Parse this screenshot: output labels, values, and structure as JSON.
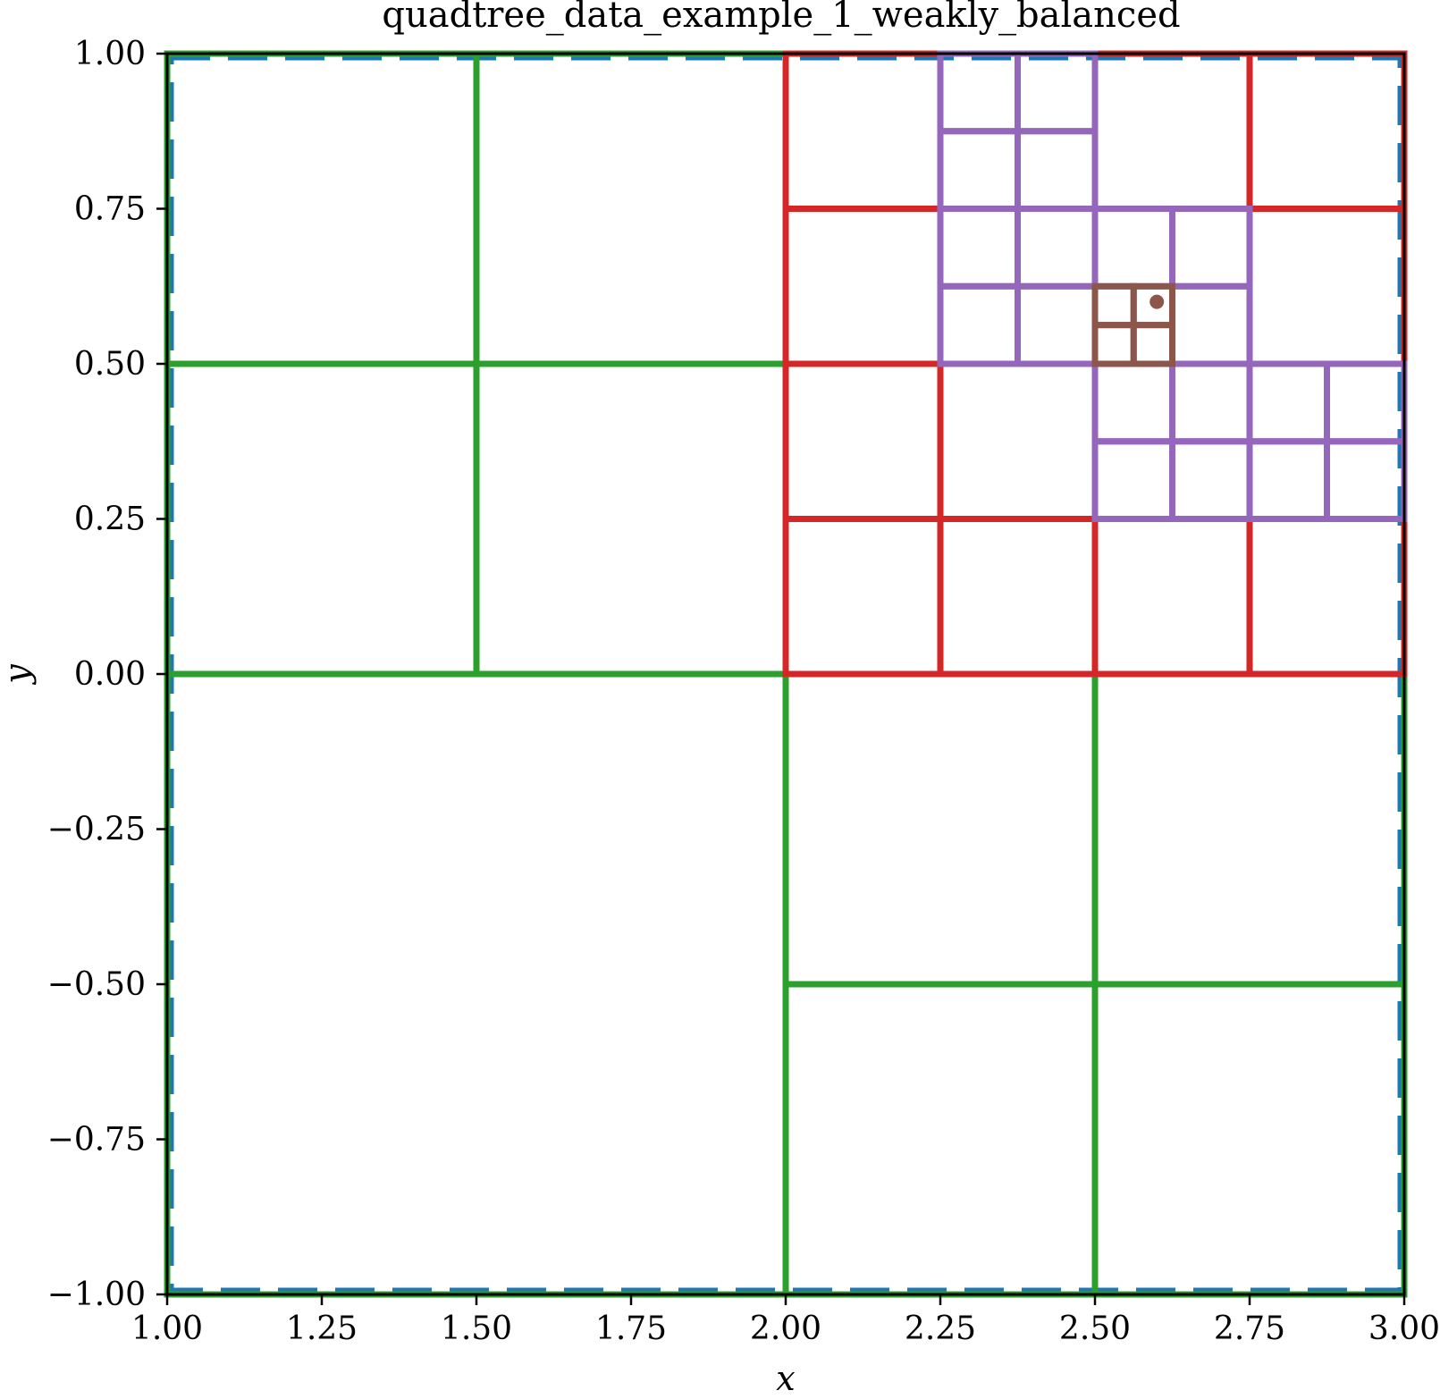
{
  "chart_data": {
    "type": "quadtree",
    "title": "quadtree_data_example_1_weakly_balanced",
    "xlabel": "x",
    "ylabel": "y",
    "xlim": [
      1.0,
      3.0
    ],
    "ylim": [
      -1.0,
      1.0
    ],
    "x_ticks": [
      "1.00",
      "1.25",
      "1.50",
      "1.75",
      "2.00",
      "2.25",
      "2.50",
      "2.75",
      "3.00"
    ],
    "x_tick_values": [
      1.0,
      1.25,
      1.5,
      1.75,
      2.0,
      2.25,
      2.5,
      2.75,
      3.0
    ],
    "y_ticks": [
      "−1.00",
      "−0.75",
      "−0.50",
      "−0.25",
      "0.00",
      "0.25",
      "0.50",
      "0.75",
      "1.00"
    ],
    "y_tick_values": [
      -1.0,
      -0.75,
      -0.5,
      -0.25,
      0.0,
      0.25,
      0.5,
      0.75,
      1.0
    ],
    "grid": false,
    "levels": [
      {
        "level": 0,
        "color": "#ff7f0e",
        "cells": [
          [
            1.0,
            3.0,
            -1.0,
            1.0
          ]
        ]
      },
      {
        "level": 1,
        "color": "#1f77b4",
        "dashed": true,
        "cells": [
          [
            1.0,
            3.0,
            -1.0,
            1.0
          ]
        ]
      },
      {
        "level": 2,
        "color": "#2ca02c",
        "cells": [
          [
            1.0,
            2.0,
            0.0,
            1.0
          ],
          [
            1.0,
            2.0,
            -1.0,
            0.0
          ],
          [
            2.0,
            3.0,
            -1.0,
            0.0
          ],
          [
            1.0,
            1.5,
            0.0,
            0.5
          ],
          [
            1.5,
            2.0,
            0.0,
            0.5
          ],
          [
            1.0,
            1.5,
            0.5,
            1.0
          ],
          [
            1.5,
            2.0,
            0.5,
            1.0
          ],
          [
            2.0,
            2.5,
            -1.0,
            -0.5
          ],
          [
            2.5,
            3.0,
            -1.0,
            -0.5
          ],
          [
            2.0,
            2.5,
            -0.5,
            0.0
          ],
          [
            2.5,
            3.0,
            -0.5,
            0.0
          ]
        ]
      },
      {
        "level": 3,
        "color": "#d62728",
        "cells": [
          [
            2.0,
            3.0,
            0.0,
            1.0
          ],
          [
            2.0,
            2.25,
            0.0,
            0.25
          ],
          [
            2.25,
            2.5,
            0.0,
            0.25
          ],
          [
            2.5,
            2.75,
            0.0,
            0.25
          ],
          [
            2.75,
            3.0,
            0.0,
            0.25
          ],
          [
            2.0,
            2.25,
            0.25,
            0.5
          ],
          [
            2.25,
            2.5,
            0.25,
            0.5
          ],
          [
            2.5,
            3.0,
            0.25,
            0.5
          ],
          [
            2.0,
            2.25,
            0.5,
            0.75
          ],
          [
            2.75,
            3.0,
            0.5,
            0.75
          ],
          [
            2.0,
            2.25,
            0.75,
            1.0
          ],
          [
            2.25,
            2.75,
            0.5,
            1.0
          ],
          [
            2.75,
            3.0,
            0.75,
            1.0
          ]
        ]
      },
      {
        "level": 4,
        "color": "#9467bd",
        "cells": [
          [
            2.25,
            2.375,
            0.5,
            0.625
          ],
          [
            2.375,
            2.5,
            0.5,
            0.625
          ],
          [
            2.25,
            2.375,
            0.625,
            0.75
          ],
          [
            2.375,
            2.5,
            0.625,
            0.75
          ],
          [
            2.25,
            2.375,
            0.75,
            0.875
          ],
          [
            2.375,
            2.5,
            0.75,
            0.875
          ],
          [
            2.25,
            2.375,
            0.875,
            1.0
          ],
          [
            2.375,
            2.5,
            0.875,
            1.0
          ],
          [
            2.625,
            2.75,
            0.5,
            0.625
          ],
          [
            2.5,
            2.625,
            0.625,
            0.75
          ],
          [
            2.625,
            2.75,
            0.625,
            0.75
          ],
          [
            2.5,
            2.625,
            0.25,
            0.375
          ],
          [
            2.625,
            2.75,
            0.25,
            0.375
          ],
          [
            2.75,
            2.875,
            0.25,
            0.375
          ],
          [
            2.875,
            3.0,
            0.25,
            0.375
          ],
          [
            2.5,
            2.625,
            0.375,
            0.5
          ],
          [
            2.625,
            2.75,
            0.375,
            0.5
          ],
          [
            2.75,
            2.875,
            0.375,
            0.5
          ],
          [
            2.875,
            3.0,
            0.375,
            0.5
          ]
        ]
      },
      {
        "level": 5,
        "color": "#8c564b",
        "cells": [
          [
            2.5,
            2.5625,
            0.5,
            0.5625
          ],
          [
            2.5625,
            2.625,
            0.5,
            0.5625
          ],
          [
            2.5,
            2.5625,
            0.5625,
            0.625
          ],
          [
            2.5625,
            2.625,
            0.5625,
            0.625
          ]
        ]
      }
    ],
    "points": [
      {
        "x": 2.6,
        "y": 0.6,
        "color": "#8c564b"
      }
    ]
  }
}
